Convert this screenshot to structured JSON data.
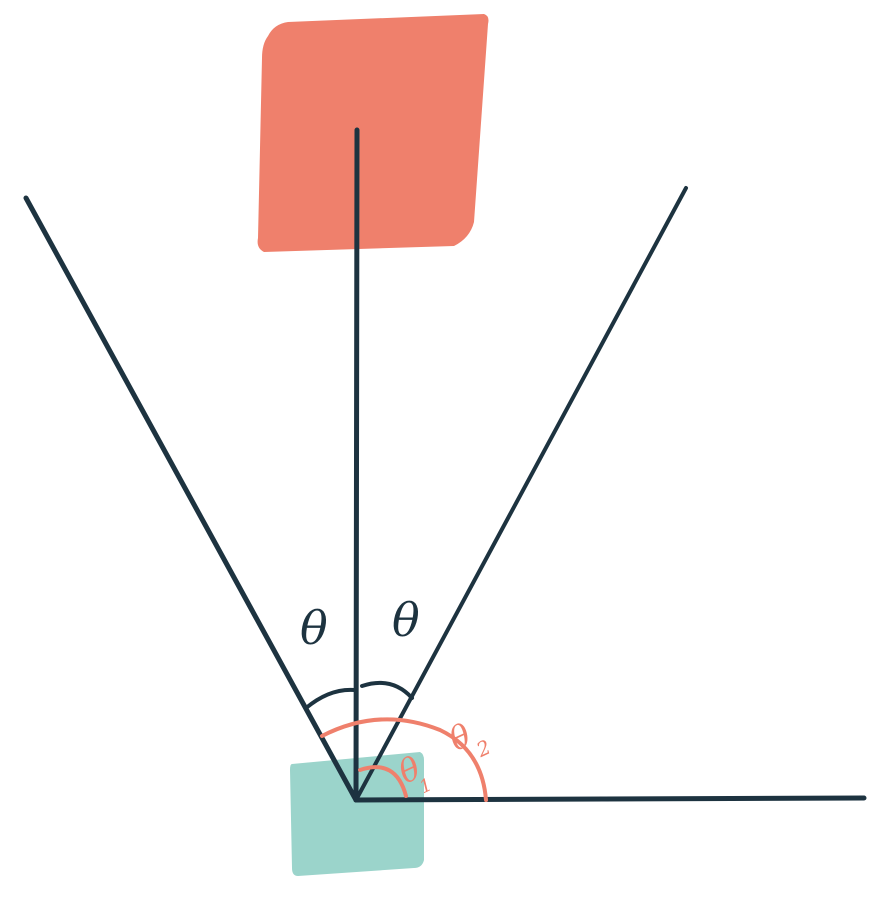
{
  "colors": {
    "background": "#ffffff",
    "ink": "#1d3340",
    "target_square": "#ef806c",
    "origin_square": "#9bd4cb",
    "angle_marks": "#ef806c"
  },
  "labels": {
    "theta_left": "θ",
    "theta_right": "θ",
    "theta_1_symbol": "θ",
    "theta_1_subscript": "1",
    "theta_2_symbol": "θ",
    "theta_2_subscript": "2"
  }
}
